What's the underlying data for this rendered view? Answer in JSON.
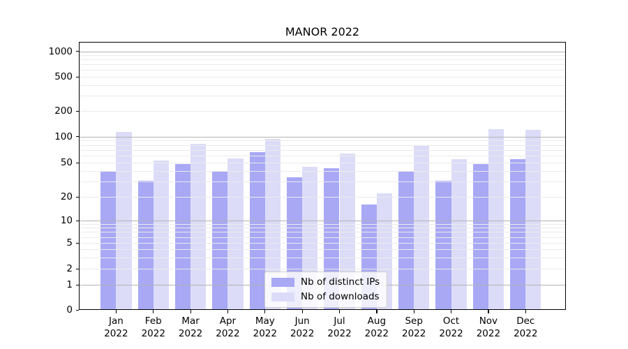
{
  "title": "MANOR 2022",
  "colors": {
    "ips": "#a8a8f5",
    "downloads": "#dcdcf8",
    "grid_major": "#b3b3b3",
    "grid_minor": "#ebebeb",
    "axis": "#000000",
    "legend_border": "#cccccc"
  },
  "legend": {
    "items": [
      {
        "label": "Nb of distinct IPs",
        "series": "ips"
      },
      {
        "label": "Nb of downloads",
        "series": "downloads"
      }
    ]
  },
  "chart_data": {
    "type": "bar",
    "title": "MANOR 2022",
    "categories": [
      "Jan 2022",
      "Feb 2022",
      "Mar 2022",
      "Apr 2022",
      "May 2022",
      "Jun 2022",
      "Jul 2022",
      "Aug 2022",
      "Sep 2022",
      "Oct 2022",
      "Nov 2022",
      "Dec 2022"
    ],
    "series": [
      {
        "name": "Nb of distinct IPs",
        "key": "ips",
        "values": [
          40,
          31,
          48,
          40,
          66,
          34,
          43,
          16,
          40,
          31,
          48,
          55
        ]
      },
      {
        "name": "Nb of downloads",
        "key": "downloads",
        "values": [
          113,
          53,
          82,
          56,
          93,
          45,
          64,
          22,
          80,
          55,
          122,
          120
        ]
      }
    ],
    "xlabel": "",
    "ylabel": "",
    "yscale": "symlog",
    "y_ticks": [
      0,
      1,
      2,
      5,
      10,
      20,
      50,
      100,
      200,
      500,
      1000
    ],
    "ylim": [
      0,
      1300
    ],
    "grid": true,
    "legend_position": "lower center"
  }
}
